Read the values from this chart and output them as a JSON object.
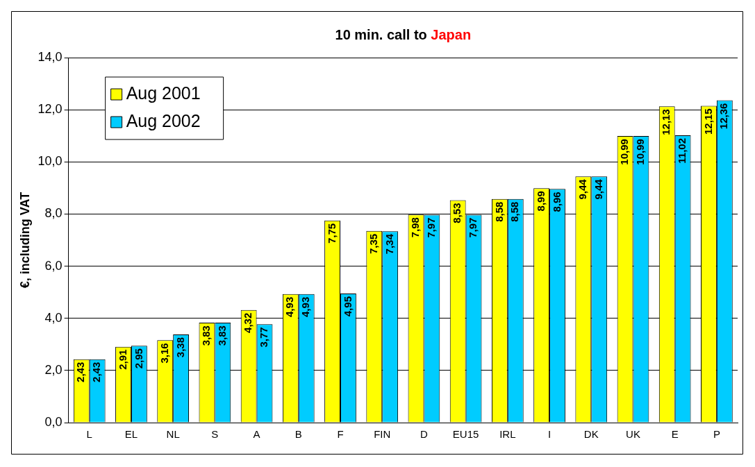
{
  "chart_data": {
    "type": "bar",
    "title": "10 min. call to Japan",
    "ylabel": "€, including VAT",
    "categories": [
      "L",
      "EL",
      "NL",
      "S",
      "A",
      "B",
      "F",
      "FIN",
      "D",
      "EU15",
      "IRL",
      "I",
      "DK",
      "UK",
      "E",
      "P"
    ],
    "series": [
      {
        "name": "Aug 2001",
        "color": "#ffff00",
        "values": [
          2.43,
          2.91,
          3.16,
          3.83,
          4.32,
          4.93,
          7.75,
          7.35,
          7.98,
          8.53,
          8.58,
          8.99,
          9.44,
          10.99,
          12.13,
          12.15
        ],
        "value_labels": [
          "2,43",
          "2,91",
          "3,16",
          "3,83",
          "4,32",
          "4,93",
          "7,75",
          "7,35",
          "7,98",
          "8,53",
          "8,58",
          "8,99",
          "9,44",
          "10,99",
          "12,13",
          "12,15"
        ]
      },
      {
        "name": "Aug 2002",
        "color": "#00ccff",
        "values": [
          2.43,
          2.95,
          3.38,
          3.83,
          3.77,
          4.93,
          4.95,
          7.34,
          7.97,
          7.97,
          8.58,
          8.96,
          9.44,
          10.99,
          11.02,
          12.36
        ],
        "value_labels": [
          "2,43",
          "2,95",
          "3,38",
          "3,83",
          "3,77",
          "4,93",
          "4,95",
          "7,34",
          "7,97",
          "7,97",
          "8,58",
          "8,96",
          "9,44",
          "10,99",
          "11,02",
          "12,36"
        ]
      }
    ],
    "ylim": [
      0,
      14
    ],
    "yticks": [
      {
        "value": 0,
        "label": "0,0"
      },
      {
        "value": 2,
        "label": "2,0"
      },
      {
        "value": 4,
        "label": "4,0"
      },
      {
        "value": 6,
        "label": "6,0"
      },
      {
        "value": 8,
        "label": "8,0"
      },
      {
        "value": 10,
        "label": "10,0"
      },
      {
        "value": 12,
        "label": "12,0"
      },
      {
        "value": 14,
        "label": "14,0"
      }
    ],
    "grid": "y",
    "legend": "top left"
  }
}
